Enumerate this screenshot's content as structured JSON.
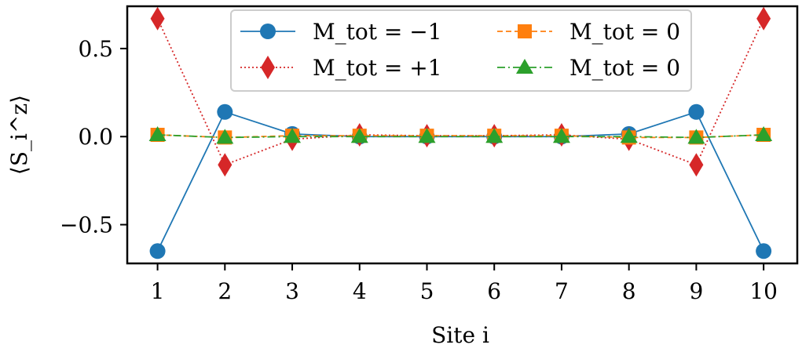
{
  "chart_data": {
    "type": "line",
    "title": "",
    "xlabel": "Site i",
    "ylabel": "⟨S_i^z⟩",
    "x": [
      1,
      2,
      3,
      4,
      5,
      6,
      7,
      8,
      9,
      10
    ],
    "xticks": [
      "1",
      "2",
      "3",
      "4",
      "5",
      "6",
      "7",
      "8",
      "9",
      "10"
    ],
    "yticks": [
      {
        "value": -0.5,
        "label": "−0.5"
      },
      {
        "value": 0.0,
        "label": "0.0"
      },
      {
        "value": 0.5,
        "label": "0.5"
      }
    ],
    "xlim": [
      0.55,
      10.5
    ],
    "ylim": [
      -0.72,
      0.74
    ],
    "grid": false,
    "legend_position": "top-center",
    "legend_columns": 2,
    "series": [
      {
        "name": "M_tot = −1",
        "legend_label": "M_tot = −1",
        "values": [
          -0.65,
          0.14,
          0.015,
          0.0,
          0.0,
          0.0,
          0.0,
          0.015,
          0.14,
          -0.65
        ],
        "color": "#1f77b4",
        "marker": "circle",
        "linestyle": "solid"
      },
      {
        "name": "M_tot = +1",
        "legend_label": "M_tot = +1",
        "values": [
          0.67,
          -0.16,
          -0.015,
          0.01,
          0.005,
          0.005,
          0.01,
          -0.015,
          -0.16,
          0.67
        ],
        "color": "#d62728",
        "marker": "diamond",
        "linestyle": "dotted"
      },
      {
        "name": "M_tot = 0 (square)",
        "legend_label": "M_tot = 0",
        "values": [
          0.01,
          -0.005,
          0.005,
          0.005,
          0.005,
          0.005,
          0.005,
          -0.005,
          -0.005,
          0.01
        ],
        "color": "#ff7f0e",
        "marker": "square",
        "linestyle": "dashed"
      },
      {
        "name": "M_tot = 0 (triangle)",
        "legend_label": "M_tot = 0",
        "values": [
          0.01,
          -0.005,
          0.0,
          0.0,
          0.0,
          0.0,
          0.0,
          0.0,
          -0.005,
          0.01
        ],
        "color": "#2ca02c",
        "marker": "triangle",
        "linestyle": "dashdot"
      }
    ]
  }
}
